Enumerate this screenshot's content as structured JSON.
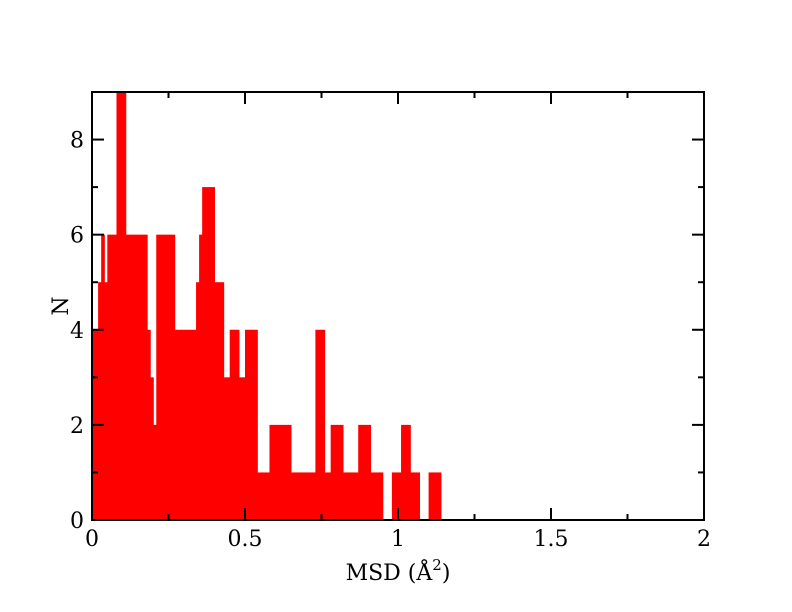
{
  "chart_data": {
    "type": "bar",
    "subtype": "histogram",
    "xlabel": "MSD (Å",
    "xlabel_superscript": "2",
    "xlabel_suffix": ")",
    "ylabel": "N",
    "xlim": [
      0,
      2
    ],
    "ylim": [
      0,
      9
    ],
    "x_ticks": [
      0,
      0.5,
      1,
      1.5,
      2
    ],
    "x_tick_labels": [
      "0",
      "0.5",
      "1",
      "1.5",
      "2"
    ],
    "y_ticks": [
      0,
      2,
      4,
      6,
      8
    ],
    "y_tick_labels": [
      "0",
      "2",
      "4",
      "6",
      "8"
    ],
    "grid": false,
    "bar_color": "#ff0000",
    "bin_width": 0.01,
    "bins": [
      {
        "x": 0.0,
        "n": 4
      },
      {
        "x": 0.01,
        "n": 4
      },
      {
        "x": 0.02,
        "n": 5
      },
      {
        "x": 0.03,
        "n": 6
      },
      {
        "x": 0.04,
        "n": 5
      },
      {
        "x": 0.05,
        "n": 6
      },
      {
        "x": 0.06,
        "n": 6
      },
      {
        "x": 0.07,
        "n": 6
      },
      {
        "x": 0.08,
        "n": 9
      },
      {
        "x": 0.09,
        "n": 9
      },
      {
        "x": 0.1,
        "n": 9
      },
      {
        "x": 0.11,
        "n": 6
      },
      {
        "x": 0.12,
        "n": 6
      },
      {
        "x": 0.13,
        "n": 6
      },
      {
        "x": 0.14,
        "n": 6
      },
      {
        "x": 0.15,
        "n": 6
      },
      {
        "x": 0.16,
        "n": 6
      },
      {
        "x": 0.17,
        "n": 6
      },
      {
        "x": 0.18,
        "n": 4
      },
      {
        "x": 0.19,
        "n": 3
      },
      {
        "x": 0.2,
        "n": 2
      },
      {
        "x": 0.21,
        "n": 6
      },
      {
        "x": 0.22,
        "n": 6
      },
      {
        "x": 0.23,
        "n": 6
      },
      {
        "x": 0.24,
        "n": 6
      },
      {
        "x": 0.25,
        "n": 6
      },
      {
        "x": 0.26,
        "n": 6
      },
      {
        "x": 0.27,
        "n": 4
      },
      {
        "x": 0.28,
        "n": 4
      },
      {
        "x": 0.29,
        "n": 4
      },
      {
        "x": 0.3,
        "n": 4
      },
      {
        "x": 0.31,
        "n": 4
      },
      {
        "x": 0.32,
        "n": 4
      },
      {
        "x": 0.33,
        "n": 4
      },
      {
        "x": 0.34,
        "n": 5
      },
      {
        "x": 0.35,
        "n": 6
      },
      {
        "x": 0.36,
        "n": 7
      },
      {
        "x": 0.37,
        "n": 7
      },
      {
        "x": 0.38,
        "n": 7
      },
      {
        "x": 0.39,
        "n": 7
      },
      {
        "x": 0.4,
        "n": 5
      },
      {
        "x": 0.41,
        "n": 5
      },
      {
        "x": 0.42,
        "n": 5
      },
      {
        "x": 0.43,
        "n": 3
      },
      {
        "x": 0.44,
        "n": 3
      },
      {
        "x": 0.45,
        "n": 4
      },
      {
        "x": 0.46,
        "n": 4
      },
      {
        "x": 0.47,
        "n": 4
      },
      {
        "x": 0.48,
        "n": 3
      },
      {
        "x": 0.49,
        "n": 3
      },
      {
        "x": 0.5,
        "n": 4
      },
      {
        "x": 0.51,
        "n": 4
      },
      {
        "x": 0.52,
        "n": 4
      },
      {
        "x": 0.53,
        "n": 4
      },
      {
        "x": 0.54,
        "n": 1
      },
      {
        "x": 0.55,
        "n": 1
      },
      {
        "x": 0.56,
        "n": 1
      },
      {
        "x": 0.57,
        "n": 1
      },
      {
        "x": 0.58,
        "n": 2
      },
      {
        "x": 0.59,
        "n": 2
      },
      {
        "x": 0.6,
        "n": 2
      },
      {
        "x": 0.61,
        "n": 2
      },
      {
        "x": 0.62,
        "n": 2
      },
      {
        "x": 0.63,
        "n": 2
      },
      {
        "x": 0.64,
        "n": 2
      },
      {
        "x": 0.65,
        "n": 1
      },
      {
        "x": 0.66,
        "n": 1
      },
      {
        "x": 0.67,
        "n": 1
      },
      {
        "x": 0.68,
        "n": 1
      },
      {
        "x": 0.69,
        "n": 1
      },
      {
        "x": 0.7,
        "n": 1
      },
      {
        "x": 0.71,
        "n": 1
      },
      {
        "x": 0.72,
        "n": 1
      },
      {
        "x": 0.73,
        "n": 4
      },
      {
        "x": 0.74,
        "n": 4
      },
      {
        "x": 0.75,
        "n": 4
      },
      {
        "x": 0.76,
        "n": 1
      },
      {
        "x": 0.77,
        "n": 1
      },
      {
        "x": 0.78,
        "n": 2
      },
      {
        "x": 0.79,
        "n": 2
      },
      {
        "x": 0.8,
        "n": 2
      },
      {
        "x": 0.81,
        "n": 2
      },
      {
        "x": 0.82,
        "n": 1
      },
      {
        "x": 0.83,
        "n": 1
      },
      {
        "x": 0.84,
        "n": 1
      },
      {
        "x": 0.85,
        "n": 1
      },
      {
        "x": 0.86,
        "n": 1
      },
      {
        "x": 0.87,
        "n": 2
      },
      {
        "x": 0.88,
        "n": 2
      },
      {
        "x": 0.89,
        "n": 2
      },
      {
        "x": 0.9,
        "n": 2
      },
      {
        "x": 0.91,
        "n": 1
      },
      {
        "x": 0.92,
        "n": 1
      },
      {
        "x": 0.93,
        "n": 1
      },
      {
        "x": 0.94,
        "n": 1
      },
      {
        "x": 0.95,
        "n": 0
      },
      {
        "x": 0.96,
        "n": 0
      },
      {
        "x": 0.97,
        "n": 0
      },
      {
        "x": 0.98,
        "n": 1
      },
      {
        "x": 0.99,
        "n": 1
      },
      {
        "x": 1.0,
        "n": 1
      },
      {
        "x": 1.01,
        "n": 2
      },
      {
        "x": 1.02,
        "n": 2
      },
      {
        "x": 1.03,
        "n": 2
      },
      {
        "x": 1.04,
        "n": 1
      },
      {
        "x": 1.05,
        "n": 1
      },
      {
        "x": 1.06,
        "n": 1
      },
      {
        "x": 1.07,
        "n": 0
      },
      {
        "x": 1.08,
        "n": 0
      },
      {
        "x": 1.09,
        "n": 0
      },
      {
        "x": 1.1,
        "n": 1
      },
      {
        "x": 1.11,
        "n": 1
      },
      {
        "x": 1.12,
        "n": 1
      },
      {
        "x": 1.13,
        "n": 1
      }
    ]
  }
}
